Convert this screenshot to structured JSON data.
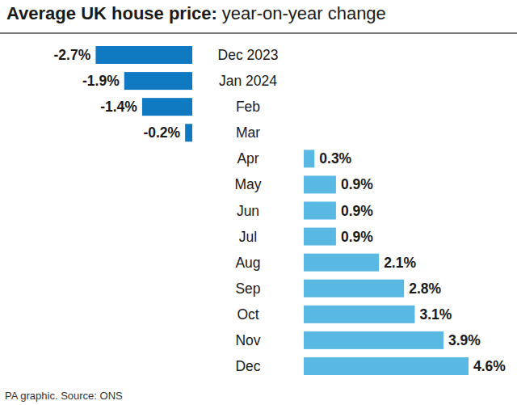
{
  "chart_data": {
    "type": "bar",
    "orientation": "horizontal",
    "title": "Average UK house price:",
    "subtitle": "year-on-year change",
    "source": "PA graphic. Source: ONS",
    "categories": [
      "Dec 2023",
      "Jan 2024",
      "Feb",
      "Mar",
      "Apr",
      "May",
      "Jun",
      "Jul",
      "Aug",
      "Sep",
      "Oct",
      "Nov",
      "Dec"
    ],
    "values": [
      -2.7,
      -1.9,
      -1.4,
      -0.2,
      0.3,
      0.9,
      0.9,
      0.9,
      2.1,
      2.8,
      3.1,
      3.9,
      4.6
    ],
    "value_labels": [
      "-2.7%",
      "-1.9%",
      "-1.4%",
      "-0.2%",
      "0.3%",
      "0.9%",
      "0.9%",
      "0.9%",
      "2.1%",
      "2.8%",
      "3.1%",
      "3.9%",
      "4.6%"
    ],
    "colors": [
      "#0f79c1",
      "#0f79c1",
      "#0f79c1",
      "#0f79c1",
      "#5ab9e3",
      "#5ab9e3",
      "#5ab9e3",
      "#5ab9e3",
      "#5ab9e3",
      "#5ab9e3",
      "#5ab9e3",
      "#5ab9e3",
      "#5ab9e3"
    ],
    "xlim": [
      -2.7,
      4.6
    ],
    "tick_labels": false,
    "grid": false,
    "data_labels": true
  }
}
